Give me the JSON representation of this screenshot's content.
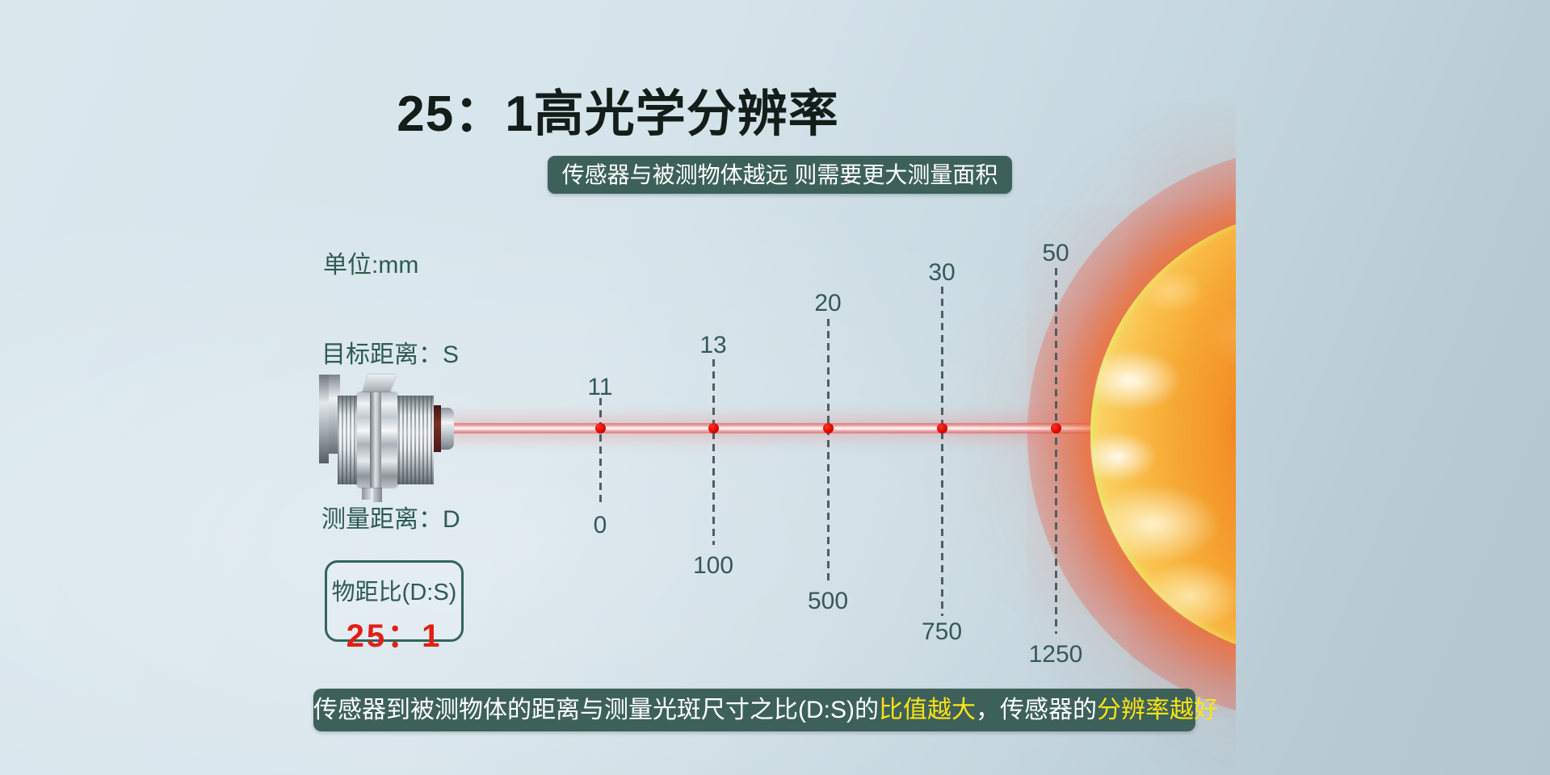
{
  "title": "25：1高光学分辨率",
  "subtitle": "传感器与被测物体越远 则需要更大测量面积",
  "unit_note": "单位:mm",
  "labels": {
    "target_distance": "目标距离：S",
    "measure_distance": "测量距离：D"
  },
  "ratio_box": {
    "label": "物距比(D:S)",
    "value": "25：1"
  },
  "scale": {
    "description": "spot size (top, mm) vs measuring distance (bottom, mm)",
    "markers": [
      {
        "spot_size": "11",
        "distance": "0"
      },
      {
        "spot_size": "13",
        "distance": "100"
      },
      {
        "spot_size": "20",
        "distance": "500"
      },
      {
        "spot_size": "30",
        "distance": "750"
      },
      {
        "spot_size": "50",
        "distance": "1250"
      }
    ]
  },
  "footer": {
    "segments": [
      {
        "text": "传感器到被测物体的距离与测量光斑尺寸之比(D:S)的",
        "emphasis": false
      },
      {
        "text": "比值越大",
        "emphasis": true
      },
      {
        "text": "，传感器的",
        "emphasis": false
      },
      {
        "text": "分辨率越好",
        "emphasis": true
      }
    ]
  },
  "colors": {
    "banner_teal": "#3d615a",
    "teal_text": "#2e5a52",
    "accent_red": "#e41e14",
    "highlight_yellow": "#ffe414",
    "laser_pink": "#f2b9b9"
  }
}
